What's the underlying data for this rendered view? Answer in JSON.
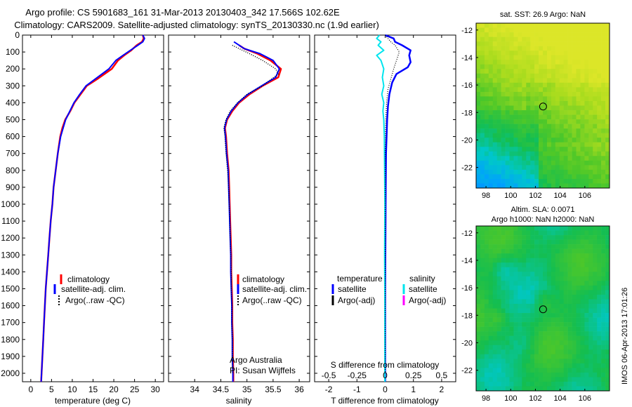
{
  "header": {
    "title_line1": "Argo profile: CS 5901683_161 31-Mar-2013 20130403_342 17.566S 102.62E",
    "title_line2": "Climatology: CARS2009. Satellite-adjusted climatology: synTS_20130330.nc (1.9d earlier)"
  },
  "footer": {
    "timestamp": "IMOS 06-Apr-2013 17:01:26"
  },
  "legend_temp": {
    "items": [
      "climatology",
      "satellite-adj. clim.",
      "Argo(..raw -QC)"
    ]
  },
  "legend_sal": {
    "items": [
      "climatology",
      "satellite-adj. clim.",
      "Argo(..raw -QC)"
    ]
  },
  "legend_diff": {
    "temp_head": "temperature",
    "sal_head": "salinity",
    "temp_items": [
      "satellite",
      "Argo(-adj)"
    ],
    "sal_items": [
      "satellite",
      "Argo(-adj)"
    ]
  },
  "annot": {
    "argo_au": "Argo Australia",
    "pi": "PI: Susan Wijffels"
  },
  "map_sst": {
    "title": "sat. SST: 26.9  Argo: NaN"
  },
  "map_sla": {
    "title_line1": "Altim. SLA: 0.0071",
    "title_line2": "Argo h1000: NaN h2000: NaN"
  },
  "colors": {
    "climatology": "#ff0000",
    "satellite_adj": "#0000ff",
    "argo": "#000000",
    "sal_satellite": "#00e5ee",
    "sal_argo": "#ff00ff"
  },
  "chart_data": [
    {
      "type": "line",
      "xlabel": "temperature (deg C)",
      "xlim": [
        -2,
        32
      ],
      "xticks": [
        0,
        5,
        10,
        15,
        20,
        25,
        30
      ],
      "ylim": [
        2050,
        0
      ],
      "yticks": [
        0,
        100,
        200,
        300,
        400,
        500,
        600,
        700,
        800,
        900,
        1000,
        1100,
        1200,
        1300,
        1400,
        1500,
        1600,
        1700,
        1800,
        1900,
        2000
      ],
      "series": [
        {
          "name": "climatology",
          "points": [
            [
              27.0,
              0
            ],
            [
              27.2,
              20
            ],
            [
              26.8,
              40
            ],
            [
              25.5,
              60
            ],
            [
              24.2,
              90
            ],
            [
              22.5,
              120
            ],
            [
              21.0,
              150
            ],
            [
              19.5,
              200
            ],
            [
              16.0,
              260
            ],
            [
              13.5,
              300
            ],
            [
              12.0,
              350
            ],
            [
              10.5,
              400
            ],
            [
              9.5,
              450
            ],
            [
              8.3,
              500
            ],
            [
              7.6,
              550
            ],
            [
              7.1,
              600
            ],
            [
              6.5,
              700
            ],
            [
              6.0,
              800
            ],
            [
              5.5,
              900
            ],
            [
              5.2,
              1000
            ],
            [
              4.8,
              1100
            ],
            [
              4.5,
              1200
            ],
            [
              4.2,
              1300
            ],
            [
              3.9,
              1400
            ],
            [
              3.6,
              1500
            ],
            [
              3.4,
              1600
            ],
            [
              3.2,
              1700
            ],
            [
              3.0,
              1800
            ],
            [
              2.8,
              1900
            ],
            [
              2.6,
              2000
            ],
            [
              2.5,
              2050
            ]
          ]
        },
        {
          "name": "satellite-adj. clim.",
          "points": [
            [
              27.0,
              0
            ],
            [
              27.4,
              20
            ],
            [
              27.0,
              40
            ],
            [
              25.8,
              60
            ],
            [
              24.0,
              90
            ],
            [
              22.2,
              120
            ],
            [
              20.5,
              150
            ],
            [
              18.8,
              200
            ],
            [
              15.5,
              260
            ],
            [
              13.3,
              300
            ],
            [
              11.8,
              350
            ],
            [
              10.4,
              400
            ],
            [
              9.4,
              450
            ],
            [
              8.4,
              500
            ],
            [
              7.8,
              550
            ],
            [
              7.2,
              600
            ],
            [
              6.5,
              700
            ],
            [
              6.0,
              800
            ],
            [
              5.5,
              900
            ],
            [
              5.2,
              1000
            ],
            [
              4.8,
              1100
            ],
            [
              4.5,
              1200
            ],
            [
              4.2,
              1300
            ],
            [
              3.9,
              1400
            ],
            [
              3.6,
              1500
            ],
            [
              3.4,
              1600
            ],
            [
              3.2,
              1700
            ],
            [
              3.0,
              1800
            ],
            [
              2.8,
              1900
            ],
            [
              2.6,
              2000
            ],
            [
              2.5,
              2050
            ]
          ]
        }
      ]
    },
    {
      "type": "line",
      "xlabel": "salinity",
      "xlim": [
        33.5,
        36.2
      ],
      "xticks": [
        34,
        34.5,
        35,
        35.5,
        36
      ],
      "ylim": [
        2050,
        0
      ],
      "series": [
        {
          "name": "climatology",
          "points": [
            [
              34.85,
              60
            ],
            [
              34.95,
              80
            ],
            [
              35.2,
              110
            ],
            [
              35.45,
              150
            ],
            [
              35.65,
              200
            ],
            [
              35.6,
              250
            ],
            [
              35.3,
              300
            ],
            [
              35.05,
              350
            ],
            [
              34.85,
              400
            ],
            [
              34.72,
              450
            ],
            [
              34.62,
              500
            ],
            [
              34.58,
              550
            ],
            [
              34.6,
              600
            ],
            [
              34.62,
              700
            ],
            [
              34.65,
              800
            ],
            [
              34.66,
              900
            ],
            [
              34.67,
              1000
            ],
            [
              34.68,
              1100
            ],
            [
              34.69,
              1200
            ],
            [
              34.7,
              1300
            ],
            [
              34.7,
              1400
            ],
            [
              34.71,
              1500
            ],
            [
              34.72,
              1600
            ],
            [
              34.72,
              1700
            ],
            [
              34.73,
              1800
            ],
            [
              34.73,
              1900
            ],
            [
              34.74,
              2000
            ],
            [
              34.74,
              2050
            ]
          ]
        },
        {
          "name": "satellite-adj. clim.",
          "points": [
            [
              34.75,
              40
            ],
            [
              34.95,
              80
            ],
            [
              35.25,
              110
            ],
            [
              35.5,
              150
            ],
            [
              35.62,
              200
            ],
            [
              35.55,
              250
            ],
            [
              35.28,
              300
            ],
            [
              35.02,
              350
            ],
            [
              34.83,
              400
            ],
            [
              34.7,
              450
            ],
            [
              34.61,
              500
            ],
            [
              34.57,
              550
            ],
            [
              34.59,
              600
            ],
            [
              34.61,
              700
            ],
            [
              34.64,
              800
            ],
            [
              34.65,
              900
            ],
            [
              34.66,
              1000
            ],
            [
              34.67,
              1100
            ],
            [
              34.68,
              1200
            ],
            [
              34.69,
              1300
            ],
            [
              34.69,
              1400
            ],
            [
              34.7,
              1500
            ],
            [
              34.71,
              1600
            ],
            [
              34.71,
              1700
            ],
            [
              34.72,
              1800
            ],
            [
              34.72,
              1900
            ],
            [
              34.73,
              2000
            ],
            [
              34.73,
              2050
            ]
          ]
        },
        {
          "name": "Argo(..raw -QC)",
          "points": [
            [
              34.72,
              60
            ],
            [
              34.85,
              80
            ],
            [
              35.05,
              110
            ],
            [
              35.3,
              150
            ],
            [
              35.55,
              200
            ],
            [
              35.6,
              230
            ],
            [
              35.3,
              300
            ],
            [
              35.0,
              350
            ],
            [
              34.82,
              400
            ],
            [
              34.68,
              450
            ],
            [
              34.6,
              500
            ],
            [
              34.56,
              550
            ],
            [
              34.58,
              600
            ],
            [
              34.6,
              700
            ],
            [
              34.63,
              800
            ],
            [
              34.65,
              900
            ],
            [
              34.66,
              1000
            ],
            [
              34.67,
              1100
            ],
            [
              34.68,
              1200
            ],
            [
              34.69,
              1300
            ],
            [
              34.7,
              1400
            ],
            [
              34.7,
              1500
            ],
            [
              34.71,
              1600
            ],
            [
              34.71,
              1700
            ],
            [
              34.72,
              1800
            ],
            [
              34.72,
              1900
            ],
            [
              34.73,
              2000
            ]
          ]
        }
      ]
    },
    {
      "type": "line",
      "xlabel": "T difference from climatology",
      "x2label": "S difference from climatology",
      "xlim": [
        -2.5,
        2.5
      ],
      "xticks": [
        -2,
        -1,
        0,
        1,
        2
      ],
      "x2ticks": [
        "-0.5",
        "-0.25",
        "0",
        "0.25",
        "0.5"
      ],
      "ylim": [
        2050,
        0
      ],
      "series": [
        {
          "name": "temperature satellite",
          "points": [
            [
              0.0,
              0
            ],
            [
              0.3,
              20
            ],
            [
              0.35,
              40
            ],
            [
              0.6,
              60
            ],
            [
              0.9,
              90
            ],
            [
              0.85,
              120
            ],
            [
              0.9,
              160
            ],
            [
              0.8,
              190
            ],
            [
              0.4,
              230
            ],
            [
              0.25,
              280
            ],
            [
              0.15,
              350
            ],
            [
              0.1,
              420
            ],
            [
              0.07,
              500
            ],
            [
              0.05,
              600
            ],
            [
              0.03,
              700
            ],
            [
              0.02,
              900
            ],
            [
              0.01,
              1200
            ],
            [
              0.0,
              1500
            ],
            [
              0.0,
              2050
            ]
          ]
        },
        {
          "name": "salinity satellite",
          "points": [
            [
              -0.2,
              0
            ],
            [
              -0.3,
              20
            ],
            [
              -0.15,
              40
            ],
            [
              -0.25,
              60
            ],
            [
              -0.05,
              90
            ],
            [
              -0.3,
              120
            ],
            [
              -0.15,
              150
            ],
            [
              -0.05,
              200
            ],
            [
              -0.1,
              250
            ],
            [
              -0.05,
              300
            ],
            [
              -0.12,
              350
            ],
            [
              -0.05,
              400
            ],
            [
              -0.08,
              450
            ],
            [
              -0.05,
              500
            ],
            [
              -0.03,
              600
            ],
            [
              -0.02,
              800
            ],
            [
              -0.01,
              1000
            ],
            [
              -0.02,
              1300
            ],
            [
              -0.01,
              1600
            ],
            [
              -0.01,
              2050
            ]
          ]
        },
        {
          "name": "temperature Argo(-adj)",
          "points": [
            [
              0.0,
              0
            ],
            [
              0.2,
              40
            ],
            [
              0.35,
              60
            ],
            [
              0.5,
              100
            ],
            [
              0.4,
              150
            ],
            [
              0.3,
              200
            ],
            [
              0.2,
              260
            ],
            [
              0.1,
              320
            ],
            [
              0.05,
              400
            ],
            [
              0.02,
              500
            ],
            [
              0.0,
              700
            ],
            [
              0.0,
              2000
            ]
          ]
        }
      ]
    }
  ],
  "maps": {
    "xticks": [
      98,
      100,
      102,
      104,
      106
    ],
    "yticks": [
      -12,
      -14,
      -16,
      -18,
      -20,
      -22
    ],
    "xlim": [
      97.2,
      108.0
    ],
    "ylim": [
      -23.5,
      -11.5
    ],
    "marker": [
      102.62,
      -17.566
    ]
  }
}
